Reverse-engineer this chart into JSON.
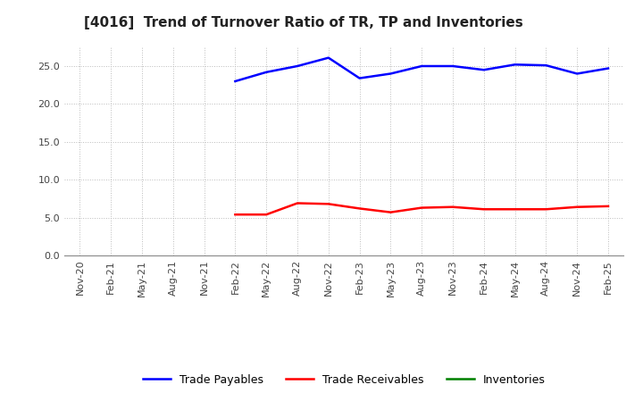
{
  "title": "[4016]  Trend of Turnover Ratio of TR, TP and Inventories",
  "x_labels": [
    "Nov-20",
    "Feb-21",
    "May-21",
    "Aug-21",
    "Nov-21",
    "Feb-22",
    "May-22",
    "Aug-22",
    "Nov-22",
    "Feb-23",
    "May-23",
    "Aug-23",
    "Nov-23",
    "Feb-24",
    "May-24",
    "Aug-24",
    "Nov-24",
    "Feb-25"
  ],
  "trade_receivables": [
    null,
    null,
    null,
    null,
    null,
    5.4,
    5.4,
    6.9,
    6.8,
    6.2,
    5.7,
    6.3,
    6.4,
    6.1,
    6.1,
    6.1,
    6.4,
    6.5
  ],
  "trade_payables": [
    null,
    null,
    null,
    null,
    null,
    23.0,
    24.2,
    25.0,
    26.1,
    23.4,
    24.0,
    25.0,
    25.0,
    24.5,
    25.2,
    25.1,
    24.0,
    24.7
  ],
  "inventories": [],
  "tr_color": "#ff0000",
  "tp_color": "#0000ff",
  "inv_color": "#008000",
  "background_color": "#ffffff",
  "grid_color": "#bbbbbb",
  "ylim": [
    0,
    27.5
  ],
  "yticks": [
    0.0,
    5.0,
    10.0,
    15.0,
    20.0,
    25.0
  ],
  "legend_labels": [
    "Trade Receivables",
    "Trade Payables",
    "Inventories"
  ],
  "title_fontsize": 11,
  "tick_fontsize": 8,
  "line_width": 1.8
}
